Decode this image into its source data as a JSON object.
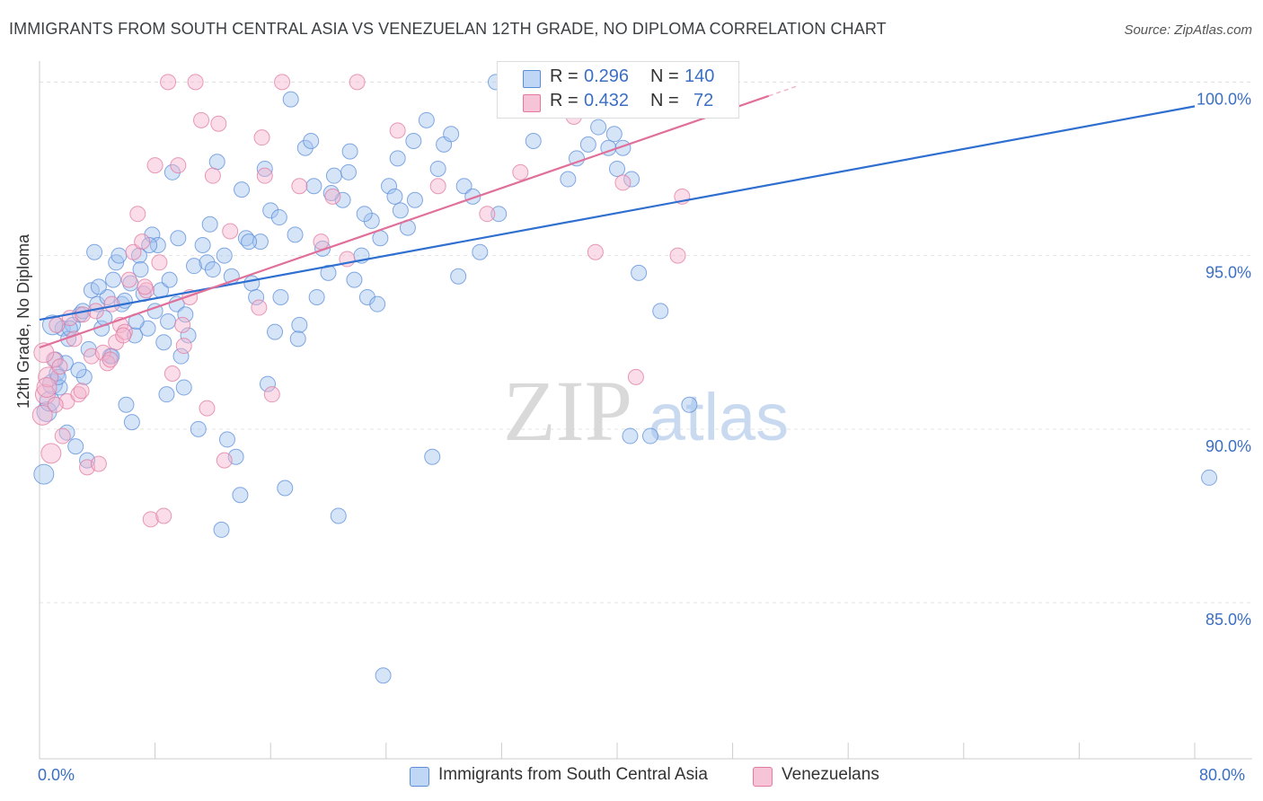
{
  "title": "IMMIGRANTS FROM SOUTH CENTRAL ASIA VS VENEZUELAN 12TH GRADE, NO DIPLOMA CORRELATION CHART",
  "source": "Source: ZipAtlas.com",
  "watermark": {
    "zip": "ZIP",
    "atlas": "atlas"
  },
  "legend_top": {
    "rows": [
      {
        "r_label": "R =",
        "r_value": "0.296",
        "n_label": "N =",
        "n_value": "140"
      },
      {
        "r_label": "R =",
        "r_value": "0.432",
        "n_label": "N =",
        "n_value": "72"
      }
    ]
  },
  "chart_data": {
    "type": "scatter",
    "title": "IMMIGRANTS FROM SOUTH CENTRAL ASIA VS VENEZUELAN 12TH GRADE, NO DIPLOMA CORRELATION CHART",
    "xlabel": "",
    "ylabel": "12th Grade, No Diploma",
    "xlim": [
      0,
      80
    ],
    "ylim": [
      80.5,
      100.5
    ],
    "x_tick_labels": [
      "0.0%",
      "80.0%"
    ],
    "y_ticks": [
      85,
      90,
      95,
      100
    ],
    "y_tick_labels": [
      "85.0%",
      "90.0%",
      "95.0%",
      "100.0%"
    ],
    "grid": true,
    "legend_position": "bottom",
    "series": [
      {
        "name": "Immigrants from South Central Asia",
        "color": "#5b8dd9",
        "fill": "rgba(164,196,240,0.45)",
        "r": 0.296,
        "n": 140,
        "trend": {
          "x0": 0,
          "y0": 93.15,
          "x1": 80,
          "y1": 99.3
        },
        "points": [
          [
            0.3,
            88.7
          ],
          [
            0.5,
            90.5
          ],
          [
            0.7,
            90.8
          ],
          [
            0.9,
            91.3
          ],
          [
            1.2,
            91.6
          ],
          [
            1.4,
            91.2
          ],
          [
            1.6,
            92.9
          ],
          [
            1.8,
            91.9
          ],
          [
            2.0,
            92.6
          ],
          [
            2.3,
            93.0
          ],
          [
            2.5,
            89.5
          ],
          [
            2.8,
            93.3
          ],
          [
            3.1,
            91.5
          ],
          [
            3.3,
            89.1
          ],
          [
            3.6,
            94.0
          ],
          [
            3.8,
            95.1
          ],
          [
            4.0,
            93.6
          ],
          [
            4.3,
            92.9
          ],
          [
            4.7,
            93.8
          ],
          [
            4.9,
            92.1
          ],
          [
            5.1,
            94.3
          ],
          [
            5.3,
            94.8
          ],
          [
            5.5,
            95.0
          ],
          [
            5.7,
            93.6
          ],
          [
            6.0,
            90.7
          ],
          [
            6.3,
            94.2
          ],
          [
            6.6,
            92.7
          ],
          [
            6.9,
            95.0
          ],
          [
            7.2,
            93.9
          ],
          [
            7.5,
            92.9
          ],
          [
            7.8,
            95.6
          ],
          [
            8.0,
            93.4
          ],
          [
            8.2,
            95.3
          ],
          [
            8.6,
            92.5
          ],
          [
            8.9,
            93.1
          ],
          [
            9.2,
            97.4
          ],
          [
            9.5,
            93.6
          ],
          [
            9.8,
            92.1
          ],
          [
            10.1,
            93.3
          ],
          [
            10.3,
            92.7
          ],
          [
            10.7,
            94.7
          ],
          [
            11.0,
            90.0
          ],
          [
            11.3,
            95.3
          ],
          [
            11.6,
            94.8
          ],
          [
            12.0,
            94.6
          ],
          [
            12.3,
            97.7
          ],
          [
            12.6,
            87.1
          ],
          [
            13.0,
            89.7
          ],
          [
            13.3,
            94.4
          ],
          [
            13.6,
            89.2
          ],
          [
            14.0,
            96.9
          ],
          [
            14.3,
            95.5
          ],
          [
            14.7,
            94.2
          ],
          [
            15.0,
            93.8
          ],
          [
            15.3,
            95.4
          ],
          [
            15.6,
            97.5
          ],
          [
            16.0,
            96.3
          ],
          [
            16.3,
            92.8
          ],
          [
            16.7,
            93.8
          ],
          [
            17.0,
            88.3
          ],
          [
            17.4,
            99.5
          ],
          [
            17.7,
            95.6
          ],
          [
            18.0,
            93.0
          ],
          [
            18.4,
            98.1
          ],
          [
            18.8,
            98.3
          ],
          [
            19.2,
            93.8
          ],
          [
            19.6,
            95.2
          ],
          [
            20.0,
            94.5
          ],
          [
            20.4,
            97.3
          ],
          [
            20.7,
            87.5
          ],
          [
            21.0,
            96.6
          ],
          [
            21.4,
            97.4
          ],
          [
            21.8,
            94.3
          ],
          [
            22.3,
            95.0
          ],
          [
            22.7,
            93.8
          ],
          [
            23.0,
            96.0
          ],
          [
            23.4,
            93.6
          ],
          [
            23.8,
            82.9
          ],
          [
            24.2,
            97.0
          ],
          [
            24.6,
            96.7
          ],
          [
            25.0,
            96.3
          ],
          [
            25.5,
            95.8
          ],
          [
            25.9,
            98.3
          ],
          [
            26.8,
            98.9
          ],
          [
            27.2,
            89.2
          ],
          [
            28.0,
            98.2
          ],
          [
            28.5,
            98.5
          ],
          [
            29.0,
            94.4
          ],
          [
            29.4,
            97.0
          ],
          [
            30.0,
            96.7
          ],
          [
            31.6,
            100.0
          ],
          [
            33.0,
            100.0
          ],
          [
            34.2,
            98.3
          ],
          [
            35.0,
            100.0
          ],
          [
            35.5,
            99.2
          ],
          [
            36.6,
            97.2
          ],
          [
            38.0,
            98.2
          ],
          [
            38.7,
            98.7
          ],
          [
            39.4,
            98.1
          ],
          [
            39.8,
            98.5
          ],
          [
            40.0,
            97.5
          ],
          [
            40.4,
            98.1
          ],
          [
            40.9,
            89.8
          ],
          [
            41.0,
            97.2
          ],
          [
            41.5,
            94.5
          ],
          [
            42.3,
            89.8
          ],
          [
            43.0,
            93.4
          ],
          [
            45.0,
            90.7
          ],
          [
            0.9,
            93.0
          ],
          [
            1.1,
            92.0
          ],
          [
            1.3,
            91.5
          ],
          [
            2.1,
            92.9
          ],
          [
            2.7,
            91.7
          ],
          [
            3.0,
            93.4
          ],
          [
            3.4,
            92.3
          ],
          [
            4.1,
            94.1
          ],
          [
            4.5,
            93.2
          ],
          [
            5.9,
            93.7
          ],
          [
            6.7,
            93.1
          ],
          [
            7.0,
            94.6
          ],
          [
            7.6,
            95.3
          ],
          [
            8.4,
            94.0
          ],
          [
            9.0,
            94.3
          ],
          [
            9.6,
            95.5
          ],
          [
            11.8,
            95.9
          ],
          [
            12.8,
            95.0
          ],
          [
            14.5,
            95.4
          ],
          [
            16.6,
            96.1
          ],
          [
            17.9,
            92.6
          ],
          [
            19.0,
            97.0
          ],
          [
            20.2,
            96.8
          ],
          [
            21.5,
            98.0
          ],
          [
            22.5,
            96.2
          ],
          [
            23.6,
            95.5
          ],
          [
            24.8,
            97.8
          ],
          [
            26.0,
            96.6
          ],
          [
            27.6,
            97.5
          ],
          [
            30.5,
            95.1
          ],
          [
            31.8,
            96.2
          ],
          [
            37.2,
            97.8
          ],
          [
            81.0,
            88.6
          ],
          [
            15.8,
            91.3
          ],
          [
            13.9,
            88.1
          ],
          [
            10.0,
            91.2
          ],
          [
            8.8,
            91.0
          ],
          [
            6.4,
            90.2
          ],
          [
            5.0,
            92.1
          ],
          [
            1.9,
            89.9
          ]
        ]
      },
      {
        "name": "Venezuelans",
        "color": "#e07aa0",
        "fill": "rgba(245,180,205,0.45)",
        "r": 0.432,
        "n": 72,
        "trend": {
          "x0": 0,
          "y0": 92.35,
          "x1": 50.5,
          "y1": 99.6
        },
        "points": [
          [
            0.2,
            90.4
          ],
          [
            0.4,
            91.0
          ],
          [
            0.6,
            91.5
          ],
          [
            0.8,
            89.3
          ],
          [
            1.0,
            92.0
          ],
          [
            1.2,
            93.0
          ],
          [
            1.4,
            91.8
          ],
          [
            1.6,
            89.8
          ],
          [
            1.9,
            90.8
          ],
          [
            2.1,
            93.2
          ],
          [
            2.4,
            92.6
          ],
          [
            2.7,
            91.0
          ],
          [
            3.0,
            93.3
          ],
          [
            3.3,
            88.9
          ],
          [
            3.6,
            92.1
          ],
          [
            3.9,
            93.4
          ],
          [
            4.1,
            89.0
          ],
          [
            4.4,
            92.2
          ],
          [
            4.7,
            91.9
          ],
          [
            5.0,
            93.6
          ],
          [
            5.3,
            92.5
          ],
          [
            5.6,
            93.0
          ],
          [
            5.9,
            92.8
          ],
          [
            6.2,
            94.3
          ],
          [
            6.5,
            95.1
          ],
          [
            6.8,
            96.2
          ],
          [
            7.1,
            95.4
          ],
          [
            7.4,
            94.0
          ],
          [
            7.7,
            87.4
          ],
          [
            8.0,
            97.6
          ],
          [
            8.3,
            94.8
          ],
          [
            8.6,
            87.5
          ],
          [
            8.9,
            100.0
          ],
          [
            9.2,
            91.6
          ],
          [
            9.6,
            97.6
          ],
          [
            10.0,
            92.4
          ],
          [
            10.4,
            93.8
          ],
          [
            10.8,
            100.0
          ],
          [
            11.2,
            98.9
          ],
          [
            11.6,
            90.6
          ],
          [
            12.0,
            97.3
          ],
          [
            12.4,
            98.8
          ],
          [
            12.8,
            89.1
          ],
          [
            13.2,
            95.7
          ],
          [
            15.2,
            93.5
          ],
          [
            15.6,
            97.3
          ],
          [
            16.1,
            91.0
          ],
          [
            16.8,
            100.0
          ],
          [
            18.0,
            97.0
          ],
          [
            19.5,
            95.4
          ],
          [
            20.3,
            96.7
          ],
          [
            21.3,
            94.9
          ],
          [
            22.0,
            100.0
          ],
          [
            24.8,
            98.6
          ],
          [
            27.6,
            97.0
          ],
          [
            31.0,
            96.2
          ],
          [
            33.3,
            97.4
          ],
          [
            37.0,
            99.0
          ],
          [
            38.5,
            95.1
          ],
          [
            40.4,
            97.1
          ],
          [
            41.3,
            91.5
          ],
          [
            44.5,
            96.7
          ],
          [
            44.2,
            95.0
          ],
          [
            0.3,
            92.2
          ],
          [
            0.5,
            91.2
          ],
          [
            1.1,
            90.7
          ],
          [
            2.9,
            91.1
          ],
          [
            4.9,
            92.0
          ],
          [
            5.8,
            92.7
          ],
          [
            7.3,
            94.1
          ],
          [
            9.9,
            93.0
          ],
          [
            15.4,
            98.4
          ]
        ]
      }
    ]
  },
  "bottom_legend": [
    {
      "label": "Immigrants from South Central Asia"
    },
    {
      "label": "Venezuelans"
    }
  ]
}
